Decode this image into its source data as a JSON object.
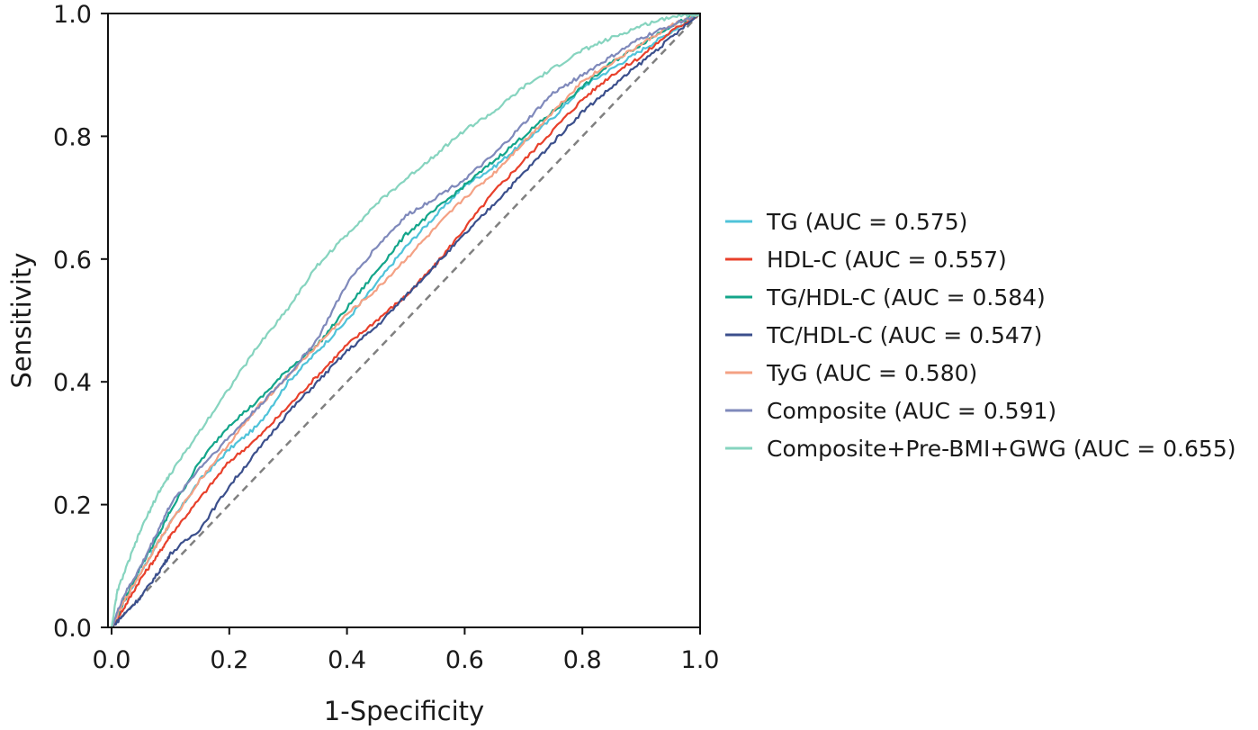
{
  "chart_data": {
    "type": "line",
    "title": "",
    "xlabel": "1-Specificity",
    "ylabel": "Sensitivity",
    "xlim": [
      0,
      1
    ],
    "ylim": [
      0,
      1
    ],
    "x_ticks": [
      "0.0",
      "0.2",
      "0.4",
      "0.6",
      "0.8",
      "1.0"
    ],
    "y_ticks": [
      "0.0",
      "0.2",
      "0.4",
      "0.6",
      "0.8",
      "1.0"
    ],
    "grid": false,
    "legend_position": "right",
    "reference_line": {
      "style": "dashed",
      "color": "#808080",
      "x": [
        0,
        1
      ],
      "y": [
        0,
        1
      ]
    },
    "series": [
      {
        "name": "TG (AUC = 0.575)",
        "color": "#4fc3d9",
        "x": [
          0,
          0.02,
          0.05,
          0.08,
          0.1,
          0.15,
          0.2,
          0.25,
          0.3,
          0.35,
          0.4,
          0.45,
          0.5,
          0.55,
          0.6,
          0.65,
          0.7,
          0.75,
          0.8,
          0.85,
          0.9,
          0.95,
          1
        ],
        "y": [
          0,
          0.04,
          0.09,
          0.14,
          0.17,
          0.24,
          0.29,
          0.33,
          0.4,
          0.45,
          0.5,
          0.56,
          0.62,
          0.67,
          0.72,
          0.75,
          0.79,
          0.83,
          0.88,
          0.91,
          0.94,
          0.97,
          1
        ]
      },
      {
        "name": "HDL-C (AUC = 0.557)",
        "color": "#e8402b",
        "x": [
          0,
          0.02,
          0.05,
          0.08,
          0.1,
          0.15,
          0.2,
          0.25,
          0.3,
          0.35,
          0.4,
          0.45,
          0.5,
          0.55,
          0.6,
          0.65,
          0.7,
          0.75,
          0.8,
          0.85,
          0.9,
          0.95,
          1
        ],
        "y": [
          0,
          0.03,
          0.08,
          0.12,
          0.15,
          0.21,
          0.27,
          0.31,
          0.36,
          0.41,
          0.46,
          0.5,
          0.54,
          0.59,
          0.65,
          0.71,
          0.76,
          0.81,
          0.86,
          0.9,
          0.93,
          0.97,
          1
        ]
      },
      {
        "name": "TG/HDL-C (AUC = 0.584)",
        "color": "#13a58a",
        "x": [
          0,
          0.02,
          0.05,
          0.08,
          0.1,
          0.15,
          0.2,
          0.25,
          0.3,
          0.35,
          0.4,
          0.45,
          0.5,
          0.55,
          0.6,
          0.65,
          0.7,
          0.75,
          0.8,
          0.85,
          0.9,
          0.95,
          1
        ],
        "y": [
          0,
          0.04,
          0.1,
          0.15,
          0.19,
          0.27,
          0.33,
          0.37,
          0.42,
          0.46,
          0.52,
          0.58,
          0.64,
          0.68,
          0.72,
          0.76,
          0.8,
          0.84,
          0.88,
          0.92,
          0.95,
          0.98,
          1
        ]
      },
      {
        "name": "TC/HDL-C (AUC = 0.547)",
        "color": "#3b4f8c",
        "x": [
          0,
          0.02,
          0.05,
          0.08,
          0.1,
          0.15,
          0.2,
          0.25,
          0.3,
          0.35,
          0.4,
          0.45,
          0.5,
          0.55,
          0.6,
          0.65,
          0.7,
          0.75,
          0.8,
          0.85,
          0.9,
          0.95,
          1
        ],
        "y": [
          0,
          0.02,
          0.05,
          0.09,
          0.12,
          0.16,
          0.23,
          0.29,
          0.35,
          0.4,
          0.45,
          0.49,
          0.54,
          0.59,
          0.64,
          0.69,
          0.74,
          0.79,
          0.84,
          0.88,
          0.92,
          0.96,
          1
        ]
      },
      {
        "name": "TyG (AUC = 0.580)",
        "color": "#f4a184",
        "x": [
          0,
          0.02,
          0.05,
          0.08,
          0.1,
          0.15,
          0.2,
          0.25,
          0.3,
          0.35,
          0.4,
          0.45,
          0.5,
          0.55,
          0.6,
          0.65,
          0.7,
          0.75,
          0.8,
          0.85,
          0.9,
          0.95,
          1
        ],
        "y": [
          0,
          0.04,
          0.09,
          0.14,
          0.17,
          0.24,
          0.3,
          0.36,
          0.41,
          0.46,
          0.51,
          0.55,
          0.6,
          0.65,
          0.7,
          0.74,
          0.79,
          0.84,
          0.89,
          0.92,
          0.95,
          0.98,
          1
        ]
      },
      {
        "name": "Composite (AUC = 0.591)",
        "color": "#7f89bb",
        "x": [
          0,
          0.02,
          0.05,
          0.08,
          0.1,
          0.15,
          0.2,
          0.25,
          0.3,
          0.35,
          0.4,
          0.45,
          0.5,
          0.55,
          0.6,
          0.65,
          0.7,
          0.75,
          0.8,
          0.85,
          0.9,
          0.95,
          1
        ],
        "y": [
          0,
          0.05,
          0.1,
          0.16,
          0.2,
          0.26,
          0.31,
          0.36,
          0.41,
          0.47,
          0.56,
          0.62,
          0.67,
          0.7,
          0.73,
          0.77,
          0.82,
          0.87,
          0.9,
          0.93,
          0.96,
          0.98,
          1
        ]
      },
      {
        "name": "Composite+Pre-BMI+GWG (AUC = 0.655)",
        "color": "#86d4bf",
        "x": [
          0,
          0.01,
          0.03,
          0.05,
          0.08,
          0.1,
          0.15,
          0.2,
          0.25,
          0.3,
          0.35,
          0.4,
          0.45,
          0.5,
          0.55,
          0.6,
          0.65,
          0.7,
          0.75,
          0.8,
          0.85,
          0.9,
          0.95,
          1
        ],
        "y": [
          0,
          0.06,
          0.11,
          0.16,
          0.22,
          0.25,
          0.32,
          0.39,
          0.46,
          0.52,
          0.59,
          0.64,
          0.69,
          0.73,
          0.77,
          0.81,
          0.84,
          0.88,
          0.91,
          0.94,
          0.96,
          0.98,
          0.995,
          1
        ]
      }
    ]
  }
}
